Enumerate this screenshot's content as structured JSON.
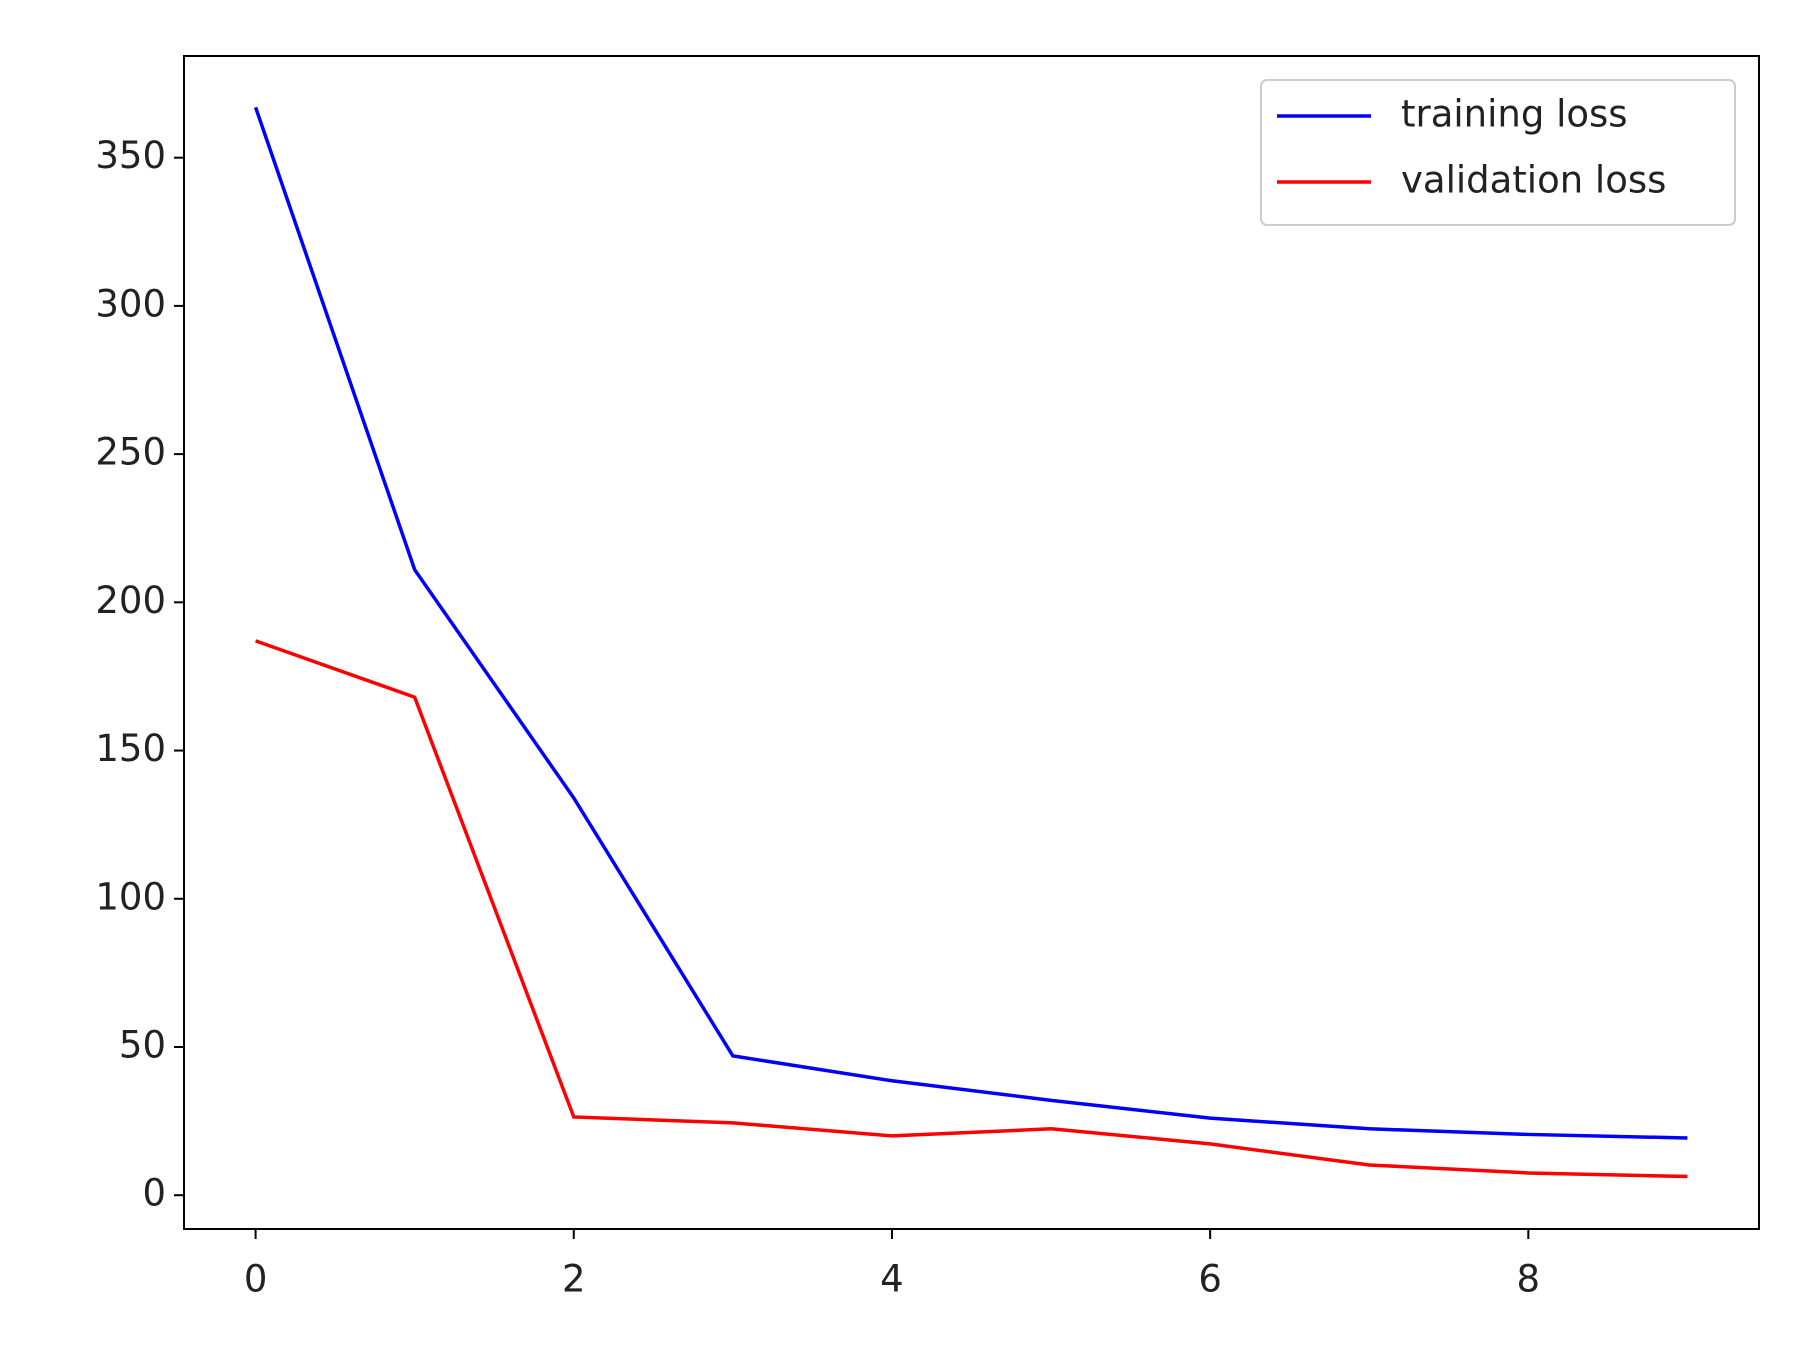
{
  "chart_data": {
    "type": "line",
    "x": [
      0,
      1,
      2,
      3,
      4,
      5,
      6,
      7,
      8,
      9
    ],
    "series": [
      {
        "name": "training loss",
        "color": "#0000ff",
        "values": [
          367,
          211,
          134,
          47,
          38.6,
          32,
          26,
          22.4,
          20.5,
          19.3
        ]
      },
      {
        "name": "validation loss",
        "color": "#ff0000",
        "values": [
          187,
          168,
          26.4,
          24.4,
          20,
          22.4,
          17.3,
          10.2,
          7.5,
          6.3
        ]
      }
    ],
    "xlim": [
      -0.45,
      9.45
    ],
    "xticks": [
      0,
      2,
      4,
      6,
      8
    ],
    "ylim": [
      -11.4,
      384.3
    ],
    "yticks": [
      0,
      50,
      100,
      150,
      200,
      250,
      300,
      350
    ],
    "grid": false,
    "legend": "upper right"
  }
}
